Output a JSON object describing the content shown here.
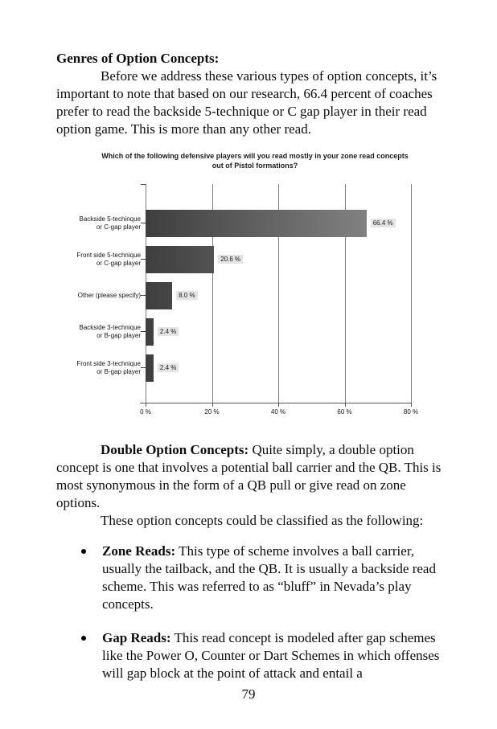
{
  "document": {
    "heading": "Genres of Option Concepts:",
    "paragraph1": "Before we address these various types of option concepts, it’s important to note that based on our research, 66.4 percent of coaches prefer to read the backside 5-technique or C gap player in their read option game. This is more than any other read.",
    "section2": {
      "lead": "Double Option Concepts:",
      "body": "Quite simply, a double option concept is one that involves a potential ball carrier and the QB. This is most synonymous in the form of a QB pull or give read on zone options."
    },
    "paragraph3": "These option concepts could be classified as the following:",
    "bullets": [
      {
        "lead": "Zone Reads:",
        "body": "This type of scheme involves a ball carrier, usually the tailback, and the QB. It is usually a backside read scheme. This was referred to as “bluff” in Nevada’s play concepts."
      },
      {
        "lead": "Gap Reads:",
        "body": "This read concept is modeled after gap schemes like the Power O, Counter or Dart Schemes in which offenses will gap block at the point of attack and entail a"
      }
    ],
    "page_number": "79"
  },
  "chart_data": {
    "type": "bar",
    "orientation": "horizontal",
    "title_lines": [
      "Which of the following defensive players will you read mostly in your zone read concepts",
      "out of Pistol formations?"
    ],
    "categories": [
      "Backside 5-techinque or C-gap player",
      "Front side 5-technique or C-gap player",
      "Other (please specify)",
      "Backside 3-technique or B-gap player",
      "Front side 3-technique or B-gap player"
    ],
    "category_lines": [
      [
        "Backside 5-techinque",
        "or C-gap player"
      ],
      [
        "Front side 5-technique",
        "or C-gap player"
      ],
      [
        "Other (please specify)"
      ],
      [
        "Backside 3-technique",
        "or B-gap player"
      ],
      [
        "Front side 3-technique",
        "or B-gap player"
      ]
    ],
    "values": [
      66.4,
      20.6,
      8.0,
      2.4,
      2.4
    ],
    "value_labels": [
      "66.4 %",
      "20.6 %",
      "8.0 %",
      "2.4 %",
      "2.4 %"
    ],
    "x_tick_values": [
      0,
      20,
      40,
      60,
      80
    ],
    "x_tick_labels": [
      "0 %",
      "20 %",
      "40 %",
      "60 %",
      "80 %"
    ],
    "xlim": [
      0,
      80
    ],
    "grid": true,
    "legend": false,
    "bar_gradient_from": "#3e3e3e",
    "bar_gradient_to": "#8f8f8f",
    "value_label_bg": "#e4e4e4",
    "gridline_color": "#7d7d7d"
  }
}
